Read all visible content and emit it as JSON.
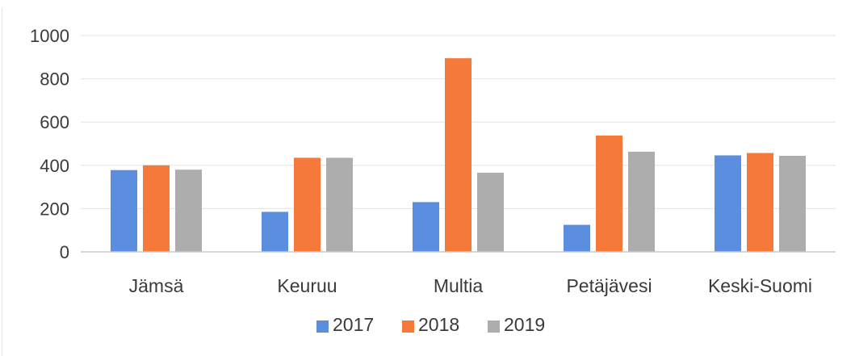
{
  "chart_data": {
    "type": "bar",
    "title": "",
    "xlabel": "",
    "ylabel": "",
    "categories": [
      "Jämsä",
      "Keuruu",
      "Multia",
      "Petäjävesi",
      "Keski-Suomi"
    ],
    "series": [
      {
        "name": "2017",
        "values": [
          378,
          185,
          230,
          125,
          446
        ],
        "color": "#5b8ede"
      },
      {
        "name": "2018",
        "values": [
          400,
          435,
          895,
          538,
          457
        ],
        "color": "#f5793a"
      },
      {
        "name": "2019",
        "values": [
          380,
          435,
          366,
          463,
          444
        ],
        "color": "#adadad"
      }
    ],
    "ylim": [
      0,
      1000
    ],
    "yticks": [
      0,
      200,
      400,
      600,
      800,
      1000
    ],
    "ytick_labels": [
      "0",
      "200",
      "400",
      "600",
      "800",
      "1000"
    ],
    "grid": true,
    "legend": "bottom-center"
  }
}
